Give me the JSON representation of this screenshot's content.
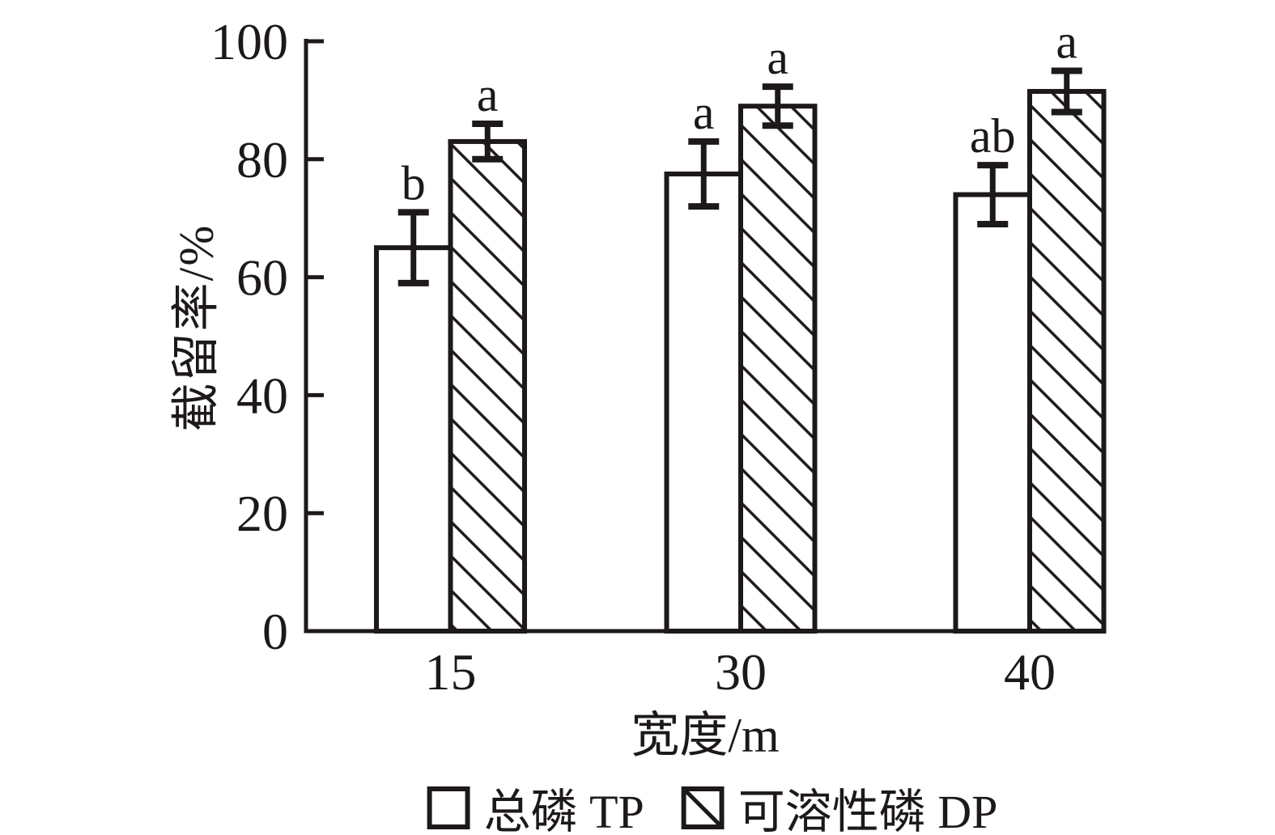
{
  "figure": {
    "background": "#ffffff",
    "ink": "#1d191a"
  },
  "chart_data": {
    "type": "bar",
    "title": "",
    "xlabel": "宽度/m",
    "ylabel": "截留率/%",
    "categories": [
      "15",
      "30",
      "40"
    ],
    "ylim": [
      0,
      100
    ],
    "yticks": [
      0,
      20,
      40,
      60,
      80,
      100
    ],
    "grid": false,
    "legend_position": "bottom",
    "error_bars": true,
    "series": [
      {
        "name": "总磷 TP",
        "swatch": "open-square-icon",
        "fill": "open",
        "values": [
          65,
          77.5,
          74
        ],
        "errors": [
          6,
          5.5,
          5
        ],
        "sig_labels": [
          "b",
          "a",
          "ab"
        ]
      },
      {
        "name": "可溶性磷 DP",
        "swatch": "hatched-square-icon",
        "fill": "hatched",
        "values": [
          83,
          89,
          91.5
        ],
        "errors": [
          3,
          3.3,
          3.5
        ],
        "sig_labels": [
          "a",
          "a",
          "a"
        ]
      }
    ]
  }
}
